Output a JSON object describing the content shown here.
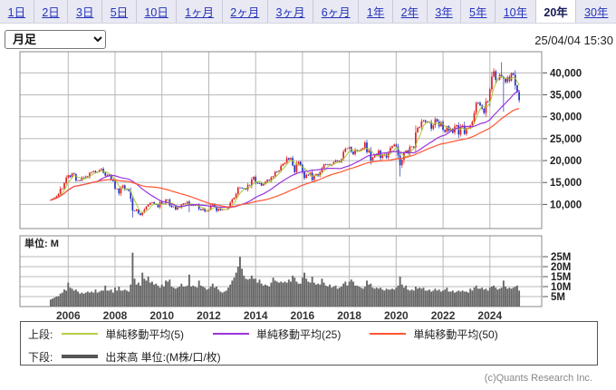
{
  "toolbar": {
    "periods": [
      "1日",
      "2日",
      "3日",
      "5日",
      "10日",
      "1ヶ月",
      "2ヶ月",
      "3ヶ月",
      "6ヶ月",
      "1年",
      "2年",
      "3年",
      "5年",
      "10年",
      "20年",
      "30年"
    ],
    "selected_period": "20年"
  },
  "controls": {
    "interval_value": "月足",
    "timestamp": "25/04/04 15:30"
  },
  "legend": {
    "row1_label": "上段:",
    "row2_label": "下段:",
    "sma_items": [
      {
        "label": "単純移動平均(5)",
        "color": "#b9cc44"
      },
      {
        "label": "単純移動平均(25)",
        "color": "#9933dd"
      },
      {
        "label": "単純移動平均(50)",
        "color": "#ff5533"
      }
    ],
    "volume_item": {
      "label": "出来高 単位:(M株/口/枚)",
      "color": "#555555"
    }
  },
  "footer": {
    "copyright": "(c)Quants Research Inc."
  },
  "chart_data": {
    "type": "candlestick",
    "frequency": "monthly",
    "start": "2005-04",
    "end": "2025-04",
    "price_ticks": [
      40000,
      35000,
      30000,
      25000,
      20000,
      15000,
      10000
    ],
    "price_tick_labels": [
      "40,000",
      "35,000",
      "30,000",
      "25,000",
      "20,000",
      "15,000",
      "10,000"
    ],
    "ylim": [
      4500,
      44800
    ],
    "year_ticks": [
      2006,
      2008,
      2010,
      2012,
      2014,
      2016,
      2018,
      2020,
      2022,
      2024
    ],
    "volume_ticks": [
      25,
      20,
      15,
      10,
      5
    ],
    "volume_tick_labels": [
      "25M",
      "20M",
      "15M",
      "10M",
      "5M"
    ],
    "volume_ylim": [
      0,
      35
    ],
    "volume_unit_label": "単位: M",
    "grid": true,
    "up_color": "#dd2222",
    "down_color": "#2433bb",
    "volume_color": "#666666",
    "sma_periods": [
      5,
      25,
      50
    ],
    "sma_colors": [
      "#aac838",
      "#9933dd",
      "#ff5533"
    ],
    "wick_pct": 1.3,
    "closes": [
      11009,
      11277,
      11584,
      11900,
      12414,
      13574,
      13606,
      14872,
      16111,
      16649,
      16205,
      17060,
      16906,
      15467,
      15505,
      15457,
      16141,
      16128,
      16399,
      16274,
      17226,
      17383,
      17604,
      17288,
      17400,
      17876,
      18138,
      17249,
      16569,
      16786,
      16738,
      15681,
      15308,
      13592,
      13603,
      12526,
      13850,
      14339,
      13481,
      13377,
      13073,
      11260,
      8577,
      8512,
      8860,
      7994,
      7568,
      8110,
      8828,
      9523,
      9958,
      10357,
      10493,
      10133,
      10035,
      9346,
      10546,
      10198,
      10126,
      11090,
      11057,
      9769,
      9383,
      9537,
      8824,
      9369,
      9202,
      9937,
      10229,
      10237,
      10624,
      9755,
      9850,
      9694,
      9816,
      9833,
      8955,
      8700,
      8988,
      8435,
      8455,
      8803,
      9723,
      10084,
      9521,
      8543,
      9007,
      8695,
      8840,
      8870,
      8928,
      9446,
      10395,
      11139,
      11559,
      12398,
      13861,
      13775,
      13677,
      13668,
      13389,
      14456,
      14328,
      15662,
      16291,
      14915,
      14841,
      14828,
      14304,
      14632,
      15162,
      15621,
      15425,
      16174,
      16414,
      17460,
      17451,
      17674,
      18798,
      19207,
      19520,
      20563,
      20236,
      20585,
      18890,
      17388,
      19083,
      19747,
      19034,
      17518,
      16027,
      16759,
      16666,
      17235,
      15576,
      16569,
      16887,
      16450,
      17425,
      18308,
      19114,
      19041,
      19119,
      18909,
      19197,
      19651,
      20033,
      19925,
      19646,
      20356,
      22012,
      22725,
      22765,
      23098,
      22068,
      21454,
      22468,
      22202,
      22305,
      22554,
      22865,
      24120,
      21920,
      22351,
      20015,
      20773,
      21385,
      21206,
      22259,
      20601,
      21276,
      21522,
      20704,
      21756,
      22927,
      23294,
      23657,
      23205,
      21143,
      18917,
      20194,
      21878,
      22288,
      21710,
      23140,
      23185,
      22977,
      26434,
      27444,
      27663,
      28966,
      29179,
      28813,
      28860,
      28792,
      27284,
      28090,
      29453,
      28893,
      27822,
      28792,
      27002,
      26527,
      27821,
      26848,
      27280,
      26393,
      27801,
      28092,
      25937,
      27587,
      27969,
      26095,
      27327,
      27446,
      28041,
      28856,
      30888,
      33189,
      33172,
      32619,
      31858,
      30859,
      33487,
      33464,
      36287,
      39166,
      40369,
      38406,
      38488,
      39583,
      39102,
      38648,
      37920,
      39081,
      38208,
      39895,
      39572,
      37156,
      35618,
      33781
    ],
    "volumes": [
      3.5,
      4.0,
      4.5,
      5.0,
      5.2,
      6.5,
      7.0,
      8.5,
      8.0,
      12.0,
      9.5,
      9.0,
      8.0,
      8.5,
      7.5,
      6.5,
      7.0,
      6.5,
      7.0,
      7.5,
      7.0,
      7.5,
      7.0,
      8.5,
      7.0,
      7.5,
      8.0,
      8.0,
      10.5,
      8.0,
      8.0,
      8.5,
      7.0,
      9.5,
      8.0,
      10.0,
      8.0,
      8.0,
      8.5,
      8.0,
      7.5,
      11.0,
      27.0,
      14.0,
      11.0,
      12.0,
      10.5,
      17.0,
      14.0,
      13.0,
      15.0,
      12.0,
      12.5,
      11.0,
      11.5,
      10.5,
      9.5,
      11.0,
      10.0,
      13.0,
      12.5,
      13.5,
      10.0,
      9.5,
      9.0,
      9.5,
      10.0,
      11.5,
      10.0,
      10.0,
      10.5,
      16.0,
      10.0,
      10.5,
      10.0,
      9.5,
      13.0,
      10.5,
      10.0,
      9.5,
      8.5,
      9.0,
      10.0,
      11.5,
      9.5,
      10.0,
      8.5,
      7.5,
      7.0,
      7.5,
      8.0,
      9.5,
      11.0,
      13.0,
      14.5,
      17.0,
      20.0,
      25.0,
      19.0,
      15.5,
      14.0,
      13.5,
      14.0,
      15.5,
      14.0,
      14.0,
      12.0,
      13.5,
      11.5,
      10.5,
      11.0,
      10.5,
      10.0,
      12.0,
      14.5,
      13.0,
      12.5,
      12.0,
      12.5,
      12.0,
      12.5,
      12.0,
      13.5,
      12.5,
      15.5,
      14.5,
      12.5,
      11.5,
      11.5,
      14.5,
      17.0,
      14.0,
      12.5,
      12.0,
      15.0,
      12.0,
      11.0,
      11.5,
      11.0,
      14.0,
      12.0,
      10.5,
      10.0,
      11.0,
      9.5,
      10.0,
      10.5,
      9.0,
      9.5,
      10.0,
      11.5,
      12.5,
      10.5,
      12.5,
      13.5,
      12.5,
      10.5,
      10.5,
      10.0,
      9.5,
      9.0,
      10.0,
      13.0,
      11.0,
      11.5,
      9.5,
      9.0,
      9.5,
      9.0,
      9.5,
      8.5,
      8.0,
      9.0,
      8.5,
      8.5,
      9.0,
      8.5,
      9.5,
      10.5,
      15.0,
      11.0,
      9.5,
      10.5,
      8.5,
      8.0,
      8.5,
      8.0,
      10.0,
      9.0,
      9.5,
      9.0,
      9.5,
      8.0,
      8.0,
      8.5,
      7.5,
      8.0,
      9.0,
      8.0,
      8.5,
      7.5,
      8.0,
      8.5,
      9.5,
      7.5,
      7.5,
      8.0,
      7.0,
      7.5,
      8.0,
      7.5,
      8.0,
      7.5,
      7.5,
      7.0,
      9.0,
      8.0,
      9.5,
      10.5,
      9.0,
      9.0,
      9.5,
      8.5,
      9.0,
      8.0,
      9.5,
      10.0,
      10.5,
      9.5,
      8.5,
      9.0,
      9.5,
      13.0,
      10.0,
      9.0,
      9.5,
      9.0,
      9.5,
      10.0,
      10.5,
      8.0
    ],
    "special_highs": {
      "26": 18300,
      "227": 41090,
      "231": 42430
    },
    "special_lows": {
      "42": 7000,
      "71": 8230,
      "179": 16360,
      "232": 31160
    }
  }
}
